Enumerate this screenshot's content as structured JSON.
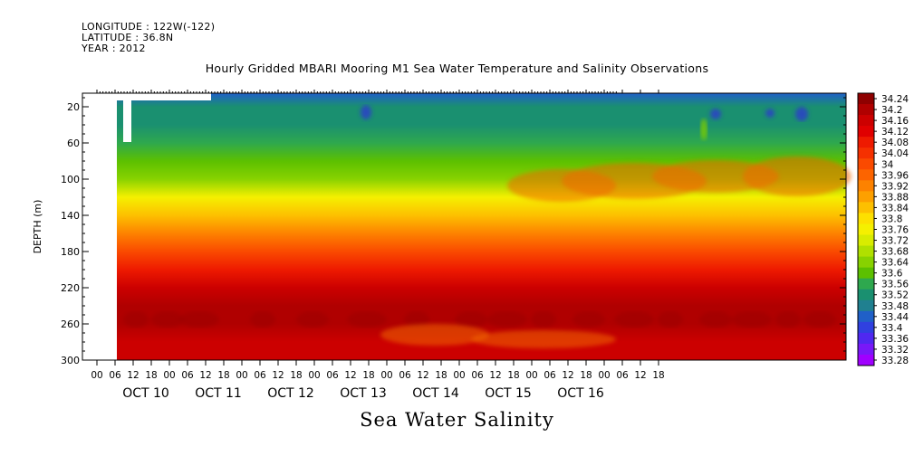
{
  "header": {
    "longitude": "LONGITUDE : 122W(-122)",
    "latitude": "LATITUDE : 36.8N",
    "year": "YEAR : 2012"
  },
  "title": "Hourly Gridded MBARI Mooring M1 Sea Water Temperature and Salinity Observations",
  "variable_title": "Sea Water Salinity",
  "chart_data": {
    "type": "heatmap",
    "title": "Hourly Gridded MBARI Mooring M1 Sea Water Temperature and Salinity Observations",
    "xlabel": "",
    "ylabel": "DEPTH (m)",
    "ylim": [
      300,
      5
    ],
    "y_ticks": [
      20,
      60,
      100,
      140,
      180,
      220,
      260,
      300
    ],
    "x_hour_ticks": [
      "00",
      "06",
      "12",
      "18",
      "00",
      "06",
      "12",
      "18",
      "00",
      "06",
      "12",
      "18",
      "00",
      "06",
      "12",
      "18",
      "00",
      "06",
      "12",
      "18",
      "00",
      "06",
      "12",
      "18",
      "00",
      "06",
      "12",
      "18",
      "00",
      "06",
      "12",
      "18"
    ],
    "x_day_labels": [
      "OCT 10",
      "OCT 11",
      "OCT 12",
      "OCT 13",
      "OCT 14",
      "OCT 15",
      "OCT 16"
    ],
    "colorbar_levels": [
      "34.24",
      "34.2",
      "34.16",
      "34.12",
      "34.08",
      "34.04",
      "34",
      "33.96",
      "33.92",
      "33.88",
      "33.84",
      "33.8",
      "33.76",
      "33.72",
      "33.68",
      "33.64",
      "33.6",
      "33.56",
      "33.52",
      "33.48",
      "33.44",
      "33.4",
      "33.36",
      "33.32",
      "33.28"
    ],
    "colorbar_colors": [
      "#8e0000",
      "#b00000",
      "#cc0000",
      "#e00000",
      "#ee1a00",
      "#f53000",
      "#fa4a00",
      "#fc6400",
      "#fd8200",
      "#fda000",
      "#fdc000",
      "#fde000",
      "#f5f000",
      "#d8ec00",
      "#b0e000",
      "#88d200",
      "#5cc000",
      "#2ea84e",
      "#1a9070",
      "#208090",
      "#2060c8",
      "#3040e0",
      "#5028f0",
      "#7818f8",
      "#a000ff"
    ],
    "salinity_profile": {
      "depth": [
        5,
        20,
        40,
        60,
        80,
        100,
        120,
        140,
        160,
        180,
        200,
        220,
        240,
        260,
        280,
        300
      ],
      "value": [
        33.42,
        33.5,
        33.54,
        33.57,
        33.6,
        33.66,
        33.74,
        33.82,
        33.92,
        34.0,
        34.08,
        34.14,
        34.18,
        34.2,
        34.16,
        34.14
      ]
    },
    "data_start": "Oct 10 2012 ~04:00",
    "data_end": "Oct 16 2012 ~21:00"
  }
}
